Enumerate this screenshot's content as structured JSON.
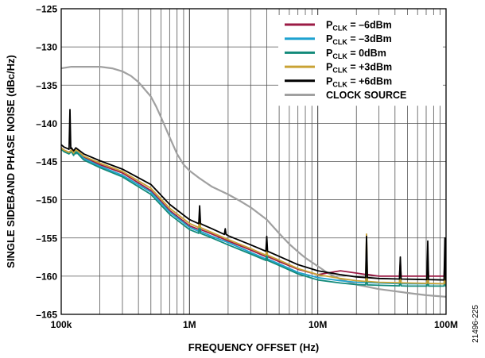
{
  "figure_id": "21496-225",
  "chart_data": {
    "type": "line",
    "xlabel": "FREQUENCY OFFSET (Hz)",
    "ylabel": "SINGLE SIDEBAND PHASE NOISE (dBc/Hz)",
    "xscale": "log",
    "xlim": [
      100000,
      100000000
    ],
    "ylim": [
      -165,
      -125
    ],
    "grid": true,
    "legend_position": "top-right",
    "x_ticks": [
      {
        "value": 100000,
        "label": "100k"
      },
      {
        "value": 1000000,
        "label": "1M"
      },
      {
        "value": 10000000,
        "label": "10M"
      },
      {
        "value": 100000000,
        "label": "100M"
      }
    ],
    "y_ticks": [
      {
        "value": -125,
        "label": "–125"
      },
      {
        "value": -130,
        "label": "–130"
      },
      {
        "value": -135,
        "label": "–135"
      },
      {
        "value": -140,
        "label": "–140"
      },
      {
        "value": -145,
        "label": "–145"
      },
      {
        "value": -150,
        "label": "–150"
      },
      {
        "value": -155,
        "label": "–155"
      },
      {
        "value": -160,
        "label": "–160"
      },
      {
        "value": -165,
        "label": "–165"
      }
    ],
    "series": [
      {
        "name_main": "P",
        "name_sub": "CLK",
        "name_rest": " = –6dBm",
        "color": "#9b1b45",
        "points": [
          [
            100000,
            -143.2
          ],
          [
            105000,
            -143.5
          ],
          [
            115000,
            -143.8
          ],
          [
            120000,
            -143.5
          ],
          [
            125000,
            -144
          ],
          [
            130000,
            -143.6
          ],
          [
            150000,
            -144.4
          ],
          [
            200000,
            -145.4
          ],
          [
            300000,
            -146.5
          ],
          [
            500000,
            -148.8
          ],
          [
            700000,
            -151.4
          ],
          [
            1000000,
            -153.4
          ],
          [
            1500000,
            -154.5
          ],
          [
            2000000,
            -155.4
          ],
          [
            3000000,
            -156.6
          ],
          [
            5000000,
            -158.1
          ],
          [
            7000000,
            -159.1
          ],
          [
            10000000,
            -159.8
          ],
          [
            15000000,
            -159.3
          ],
          [
            20000000,
            -159.6
          ],
          [
            30000000,
            -160
          ],
          [
            50000000,
            -160
          ],
          [
            100000000,
            -160
          ]
        ],
        "spurs": [
          [
            130000,
            -143.8
          ],
          [
            1200000,
            -152.2
          ],
          [
            4000000,
            -156.6
          ],
          [
            24000000,
            -158.8
          ],
          [
            44000000,
            -158.2
          ],
          [
            72000000,
            -157.8
          ],
          [
            98000000,
            -157.5
          ]
        ]
      },
      {
        "name_main": "P",
        "name_sub": "CLK",
        "name_rest": " = –3dBm",
        "color": "#1ea2d0",
        "points": [
          [
            100000,
            -143.3
          ],
          [
            105000,
            -143.6
          ],
          [
            115000,
            -143.9
          ],
          [
            120000,
            -143.6
          ],
          [
            125000,
            -144.1
          ],
          [
            130000,
            -143.7
          ],
          [
            150000,
            -144.6
          ],
          [
            200000,
            -145.6
          ],
          [
            300000,
            -146.8
          ],
          [
            500000,
            -149
          ],
          [
            700000,
            -151.6
          ],
          [
            1000000,
            -153.6
          ],
          [
            1500000,
            -154.8
          ],
          [
            2000000,
            -155.6
          ],
          [
            3000000,
            -156.9
          ],
          [
            5000000,
            -158.4
          ],
          [
            7000000,
            -159.5
          ],
          [
            10000000,
            -160.2
          ],
          [
            15000000,
            -160.6
          ],
          [
            20000000,
            -160.8
          ],
          [
            30000000,
            -160.9
          ],
          [
            50000000,
            -161
          ],
          [
            100000000,
            -161
          ]
        ],
        "spurs": [
          [
            130000,
            -143.9
          ],
          [
            1200000,
            -152.4
          ],
          [
            4000000,
            -156.9
          ],
          [
            24000000,
            -159.5
          ],
          [
            44000000,
            -159
          ],
          [
            72000000,
            -159
          ],
          [
            98000000,
            -158.8
          ]
        ]
      },
      {
        "name_main": "P",
        "name_sub": "CLK",
        "name_rest": " = 0dBm",
        "color": "#128a7a",
        "points": [
          [
            100000,
            -143.4
          ],
          [
            105000,
            -143.7
          ],
          [
            115000,
            -144
          ],
          [
            120000,
            -143.7
          ],
          [
            125000,
            -144.2
          ],
          [
            130000,
            -143.8
          ],
          [
            150000,
            -144.8
          ],
          [
            200000,
            -145.8
          ],
          [
            300000,
            -147
          ],
          [
            500000,
            -149.3
          ],
          [
            700000,
            -151.9
          ],
          [
            1000000,
            -153.9
          ],
          [
            1500000,
            -155
          ],
          [
            2000000,
            -155.9
          ],
          [
            3000000,
            -157.1
          ],
          [
            5000000,
            -158.6
          ],
          [
            7000000,
            -159.7
          ],
          [
            10000000,
            -160.5
          ],
          [
            15000000,
            -160.9
          ],
          [
            20000000,
            -161.1
          ],
          [
            30000000,
            -161.2
          ],
          [
            50000000,
            -161.3
          ],
          [
            100000000,
            -161.3
          ]
        ],
        "spurs": [
          [
            130000,
            -144
          ],
          [
            1200000,
            -152.6
          ],
          [
            4000000,
            -157.1
          ],
          [
            24000000,
            -160
          ],
          [
            44000000,
            -160
          ],
          [
            72000000,
            -160
          ],
          [
            98000000,
            -160
          ]
        ]
      },
      {
        "name_main": "P",
        "name_sub": "CLK",
        "name_rest": " = +3dBm",
        "color": "#c9a234",
        "points": [
          [
            100000,
            -143.2
          ],
          [
            105000,
            -143.5
          ],
          [
            115000,
            -143.8
          ],
          [
            120000,
            -143.5
          ],
          [
            125000,
            -143.9
          ],
          [
            130000,
            -143.5
          ],
          [
            150000,
            -144.3
          ],
          [
            200000,
            -145.2
          ],
          [
            300000,
            -146.3
          ],
          [
            500000,
            -148.5
          ],
          [
            700000,
            -151.1
          ],
          [
            1000000,
            -153.1
          ],
          [
            1500000,
            -154.3
          ],
          [
            2000000,
            -155.2
          ],
          [
            3000000,
            -156.4
          ],
          [
            5000000,
            -157.9
          ],
          [
            7000000,
            -159
          ],
          [
            10000000,
            -159.8
          ],
          [
            15000000,
            -160.3
          ],
          [
            20000000,
            -160.6
          ],
          [
            30000000,
            -160.8
          ],
          [
            50000000,
            -160.9
          ],
          [
            100000000,
            -161
          ]
        ],
        "spurs": [
          [
            130000,
            -143.6
          ],
          [
            1200000,
            -152
          ],
          [
            4000000,
            -156.4
          ],
          [
            24000000,
            -154.5
          ],
          [
            44000000,
            -159.5
          ],
          [
            72000000,
            -158
          ],
          [
            98000000,
            -159.5
          ]
        ]
      },
      {
        "name_main": "P",
        "name_sub": "CLK",
        "name_rest": " = +6dBm",
        "color": "#000000",
        "points": [
          [
            100000,
            -142.8
          ],
          [
            105000,
            -143.1
          ],
          [
            115000,
            -143.4
          ],
          [
            120000,
            -143.2
          ],
          [
            125000,
            -143.6
          ],
          [
            130000,
            -143.2
          ],
          [
            150000,
            -144
          ],
          [
            200000,
            -144.9
          ],
          [
            300000,
            -146
          ],
          [
            500000,
            -148
          ],
          [
            700000,
            -150.6
          ],
          [
            1000000,
            -152.6
          ],
          [
            1500000,
            -153.8
          ],
          [
            2000000,
            -154.7
          ],
          [
            3000000,
            -155.9
          ],
          [
            5000000,
            -157.4
          ],
          [
            7000000,
            -158.5
          ],
          [
            10000000,
            -159.3
          ],
          [
            15000000,
            -159.8
          ],
          [
            20000000,
            -160.1
          ],
          [
            30000000,
            -160.3
          ],
          [
            50000000,
            -160.4
          ],
          [
            100000000,
            -160.5
          ]
        ],
        "spurs": [
          [
            117000,
            -138.2
          ],
          [
            1200000,
            -150.8
          ],
          [
            1900000,
            -153.8
          ],
          [
            4000000,
            -154.8
          ],
          [
            24000000,
            -154.8
          ],
          [
            44000000,
            -157.5
          ],
          [
            72000000,
            -155.4
          ],
          [
            98000000,
            -155
          ]
        ]
      },
      {
        "name_main": "CLOCK SOURCE",
        "name_sub": "",
        "name_rest": "",
        "color": "#a0a0a0",
        "points": [
          [
            100000,
            -132.8
          ],
          [
            120000,
            -132.6
          ],
          [
            150000,
            -132.6
          ],
          [
            200000,
            -132.6
          ],
          [
            250000,
            -132.8
          ],
          [
            300000,
            -133.2
          ],
          [
            350000,
            -133.8
          ],
          [
            400000,
            -134.6
          ],
          [
            450000,
            -135.6
          ],
          [
            500000,
            -136.5
          ],
          [
            550000,
            -137.8
          ],
          [
            600000,
            -139.2
          ],
          [
            700000,
            -141.8
          ],
          [
            800000,
            -144
          ],
          [
            900000,
            -145.4
          ],
          [
            1000000,
            -146.2
          ],
          [
            1200000,
            -147.2
          ],
          [
            1500000,
            -148.3
          ],
          [
            2000000,
            -149.3
          ],
          [
            2500000,
            -150.2
          ],
          [
            3000000,
            -151
          ],
          [
            4000000,
            -152.6
          ],
          [
            5000000,
            -154.4
          ],
          [
            6000000,
            -155.8
          ],
          [
            7000000,
            -156.8
          ],
          [
            8000000,
            -157.6
          ],
          [
            10000000,
            -158.7
          ],
          [
            12000000,
            -159.6
          ],
          [
            15000000,
            -160.4
          ],
          [
            20000000,
            -161.1
          ],
          [
            30000000,
            -161.7
          ],
          [
            50000000,
            -162.2
          ],
          [
            70000000,
            -162.5
          ],
          [
            100000000,
            -162.7
          ]
        ],
        "spurs": []
      }
    ]
  }
}
